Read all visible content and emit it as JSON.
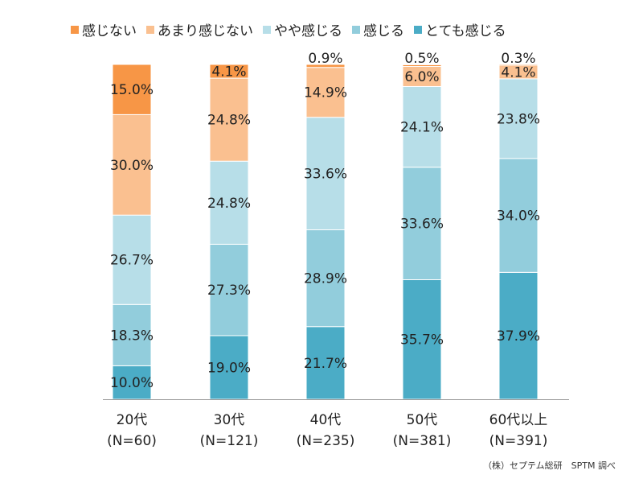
{
  "chart_data": {
    "type": "bar",
    "stacked": true,
    "percent_stacked": true,
    "categories": [
      "20代",
      "30代",
      "40代",
      "50代",
      "60代以上"
    ],
    "category_notes": [
      "(N=60)",
      "(N=121)",
      "(N=235)",
      "(N=381)",
      "(N=391)"
    ],
    "series": [
      {
        "name": "とても感じる",
        "color": "#4BACC6",
        "values": [
          10.0,
          19.0,
          21.7,
          35.7,
          37.9
        ]
      },
      {
        "name": "感じる",
        "color": "#92CDDC",
        "values": [
          18.3,
          27.3,
          28.9,
          33.6,
          34.0
        ]
      },
      {
        "name": "やや感じる",
        "color": "#B7DEE8",
        "values": [
          26.7,
          24.8,
          33.6,
          24.1,
          23.8
        ]
      },
      {
        "name": "あまり感じない",
        "color": "#FAC090",
        "values": [
          30.0,
          24.8,
          14.9,
          6.0,
          4.1
        ]
      },
      {
        "name": "感じない",
        "color": "#F79646",
        "values": [
          15.0,
          4.1,
          0.9,
          0.5,
          0.3
        ]
      }
    ],
    "legend_order": [
      "感じない",
      "あまり感じない",
      "やや感じる",
      "感じる",
      "とても感じる"
    ],
    "ylim": [
      0,
      100
    ],
    "data_label_suffix": "%",
    "legend_position": "top"
  },
  "source_note": "（株）セプテム総研　SPTM 調べ"
}
